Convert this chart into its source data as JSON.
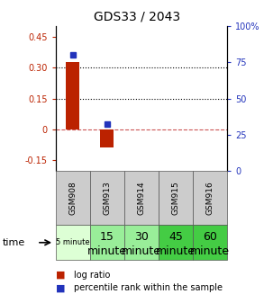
{
  "title": "GDS33 / 2043",
  "samples": [
    "GSM908",
    "GSM913",
    "GSM914",
    "GSM915",
    "GSM916"
  ],
  "time_labels_row1": [
    "5 minute",
    "15",
    "30",
    "45",
    "60"
  ],
  "time_labels_row2": [
    "",
    "minute",
    "minute",
    "minute",
    "minute"
  ],
  "log_ratios": [
    0.325,
    -0.09,
    null,
    null,
    null
  ],
  "percentile_ranks_pct": [
    80.0,
    32.0,
    null,
    null,
    null
  ],
  "bar_color": "#BB2200",
  "dot_color": "#2233BB",
  "ylim_left": [
    -0.2,
    0.5
  ],
  "ylim_right": [
    0,
    100
  ],
  "yticks_left": [
    -0.15,
    0.0,
    0.15,
    0.3,
    0.45
  ],
  "ytick_labels_left": [
    "-0.15",
    "0",
    "0.15",
    "0.30",
    "0.45"
  ],
  "yticks_right": [
    0,
    25,
    50,
    75,
    100
  ],
  "ytick_labels_right": [
    "0",
    "25",
    "50",
    "75",
    "100%"
  ],
  "hlines": [
    0.0,
    0.15,
    0.3
  ],
  "hline_styles": [
    "dashed",
    "dotted",
    "dotted"
  ],
  "hline_colors": [
    "#CC5555",
    "#000000",
    "#000000"
  ],
  "cell_color_gsm": "#CCCCCC",
  "cell_colors_time": [
    "#DDFFD5",
    "#99EE99",
    "#99EE99",
    "#44CC44",
    "#44CC44"
  ],
  "time_label_size_small": 6,
  "time_label_size_large": 9,
  "background_color": "#FFFFFF"
}
